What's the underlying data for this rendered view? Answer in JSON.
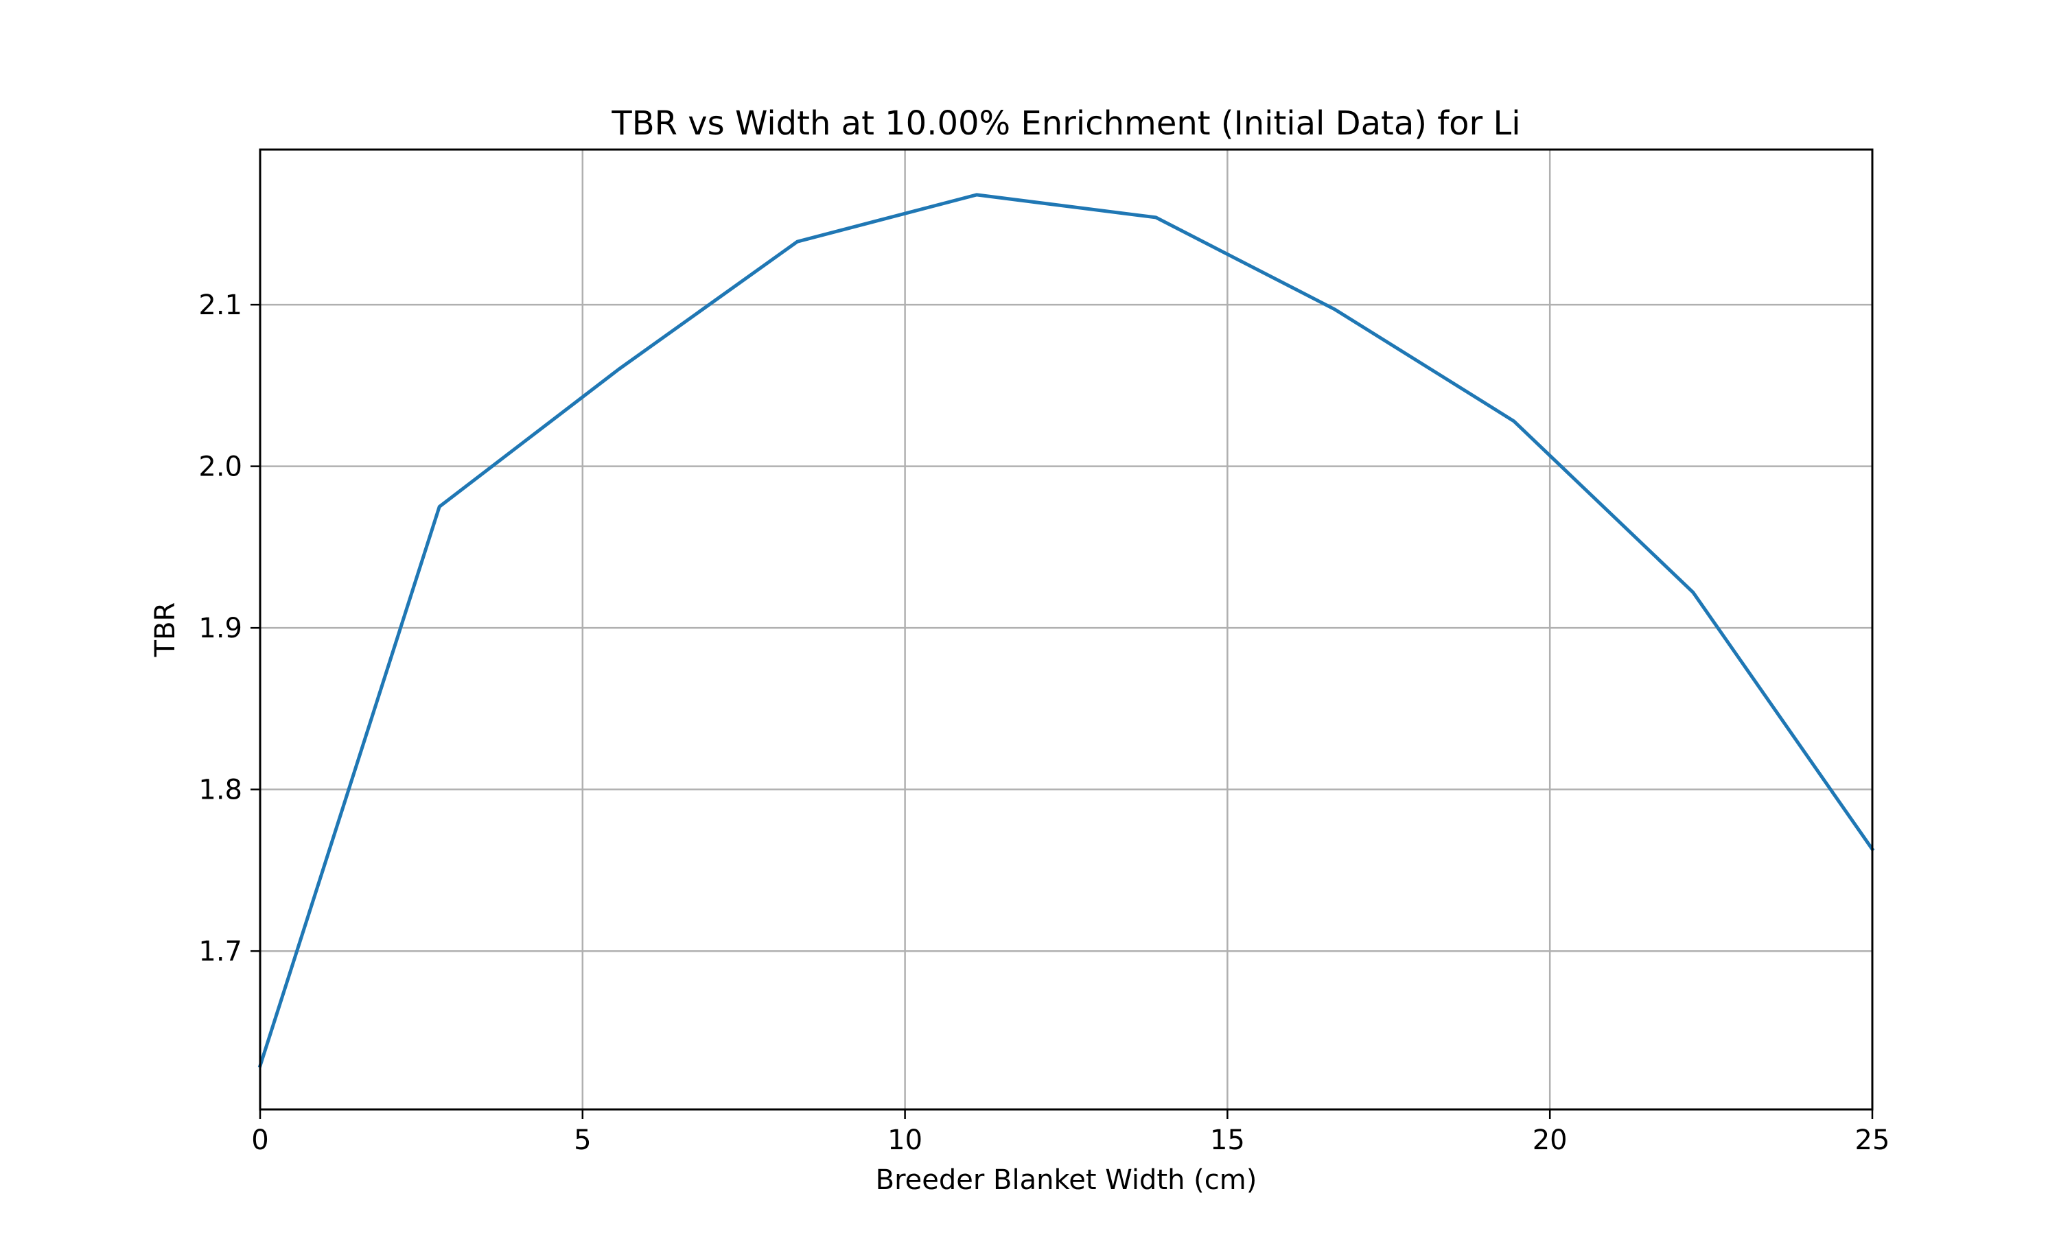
{
  "chart_data": {
    "type": "line",
    "title": "TBR vs Width at 10.00% Enrichment (Initial Data) for Li",
    "xlabel": "Breeder Blanket Width (cm)",
    "ylabel": "TBR",
    "xlim": [
      0,
      25
    ],
    "ylim": [
      1.602,
      2.196
    ],
    "x_ticks": [
      0,
      5,
      10,
      15,
      20,
      25
    ],
    "x_tick_labels": [
      "0",
      "5",
      "10",
      "15",
      "20",
      "25"
    ],
    "y_ticks": [
      1.7,
      1.8,
      1.9,
      2.0,
      2.1
    ],
    "y_tick_labels": [
      "1.7",
      "1.8",
      "1.9",
      "2.0",
      "2.1"
    ],
    "grid": true,
    "series": [
      {
        "color": "#1f77b4",
        "x": [
          0,
          2.78,
          5.56,
          8.33,
          11.11,
          13.89,
          16.67,
          19.44,
          22.22,
          25
        ],
        "y": [
          1.629,
          1.975,
          2.06,
          2.139,
          2.168,
          2.154,
          2.097,
          2.028,
          1.922,
          1.763
        ]
      }
    ]
  }
}
